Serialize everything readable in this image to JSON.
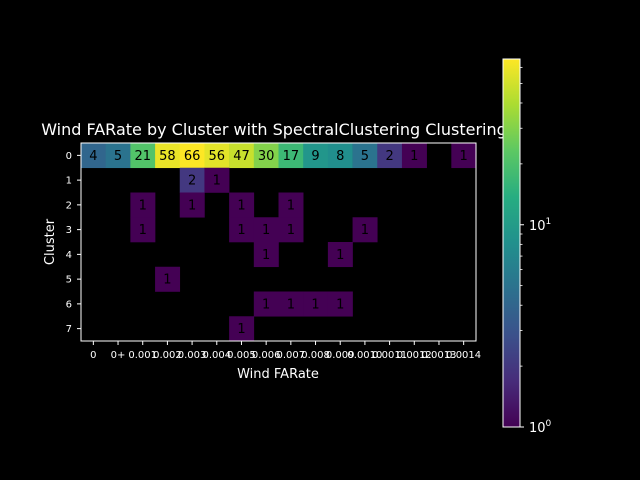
{
  "chart_data": {
    "type": "heatmap",
    "title": "Wind FARate by Cluster with SpectralClustering Clustering",
    "xlabel": "Wind FARate",
    "ylabel": "Cluster",
    "x_tick_labels": [
      "0",
      "0+",
      "0.001",
      "0.002",
      "0.003",
      "0.004",
      "0.005",
      "0.006",
      "0.007",
      "0.008",
      "0.009",
      "0.0010",
      "0.0011",
      "0.0012",
      "0.0013",
      "0.0014"
    ],
    "y_tick_labels": [
      "0",
      "1",
      "2",
      "3",
      "4",
      "5",
      "6",
      "7"
    ],
    "matrix": [
      [
        4,
        5,
        21,
        58,
        66,
        56,
        47,
        30,
        17,
        9,
        8,
        5,
        2,
        1,
        null,
        1
      ],
      [
        null,
        null,
        null,
        null,
        2,
        1,
        null,
        null,
        null,
        null,
        null,
        null,
        null,
        null,
        null,
        null
      ],
      [
        null,
        null,
        1,
        null,
        1,
        null,
        1,
        null,
        1,
        null,
        null,
        null,
        null,
        null,
        null,
        null
      ],
      [
        null,
        null,
        1,
        null,
        null,
        null,
        1,
        1,
        1,
        null,
        null,
        1,
        null,
        null,
        null,
        null
      ],
      [
        null,
        null,
        null,
        null,
        null,
        null,
        null,
        1,
        null,
        null,
        1,
        null,
        null,
        null,
        null,
        null
      ],
      [
        null,
        null,
        null,
        1,
        null,
        null,
        null,
        null,
        null,
        null,
        null,
        null,
        null,
        null,
        null,
        null
      ],
      [
        null,
        null,
        null,
        null,
        null,
        null,
        null,
        1,
        1,
        1,
        1,
        null,
        null,
        null,
        null,
        null
      ],
      [
        null,
        null,
        null,
        null,
        null,
        null,
        1,
        null,
        null,
        null,
        null,
        null,
        null,
        null,
        null,
        null
      ]
    ],
    "colormap": "viridis",
    "color_scale": "log",
    "color_range": [
      1,
      66
    ],
    "colorbar_ticks": [
      {
        "base": "10",
        "exp": "0"
      },
      {
        "base": "10",
        "exp": "1"
      }
    ],
    "background": "#000000",
    "text_color": "#ffffff"
  }
}
